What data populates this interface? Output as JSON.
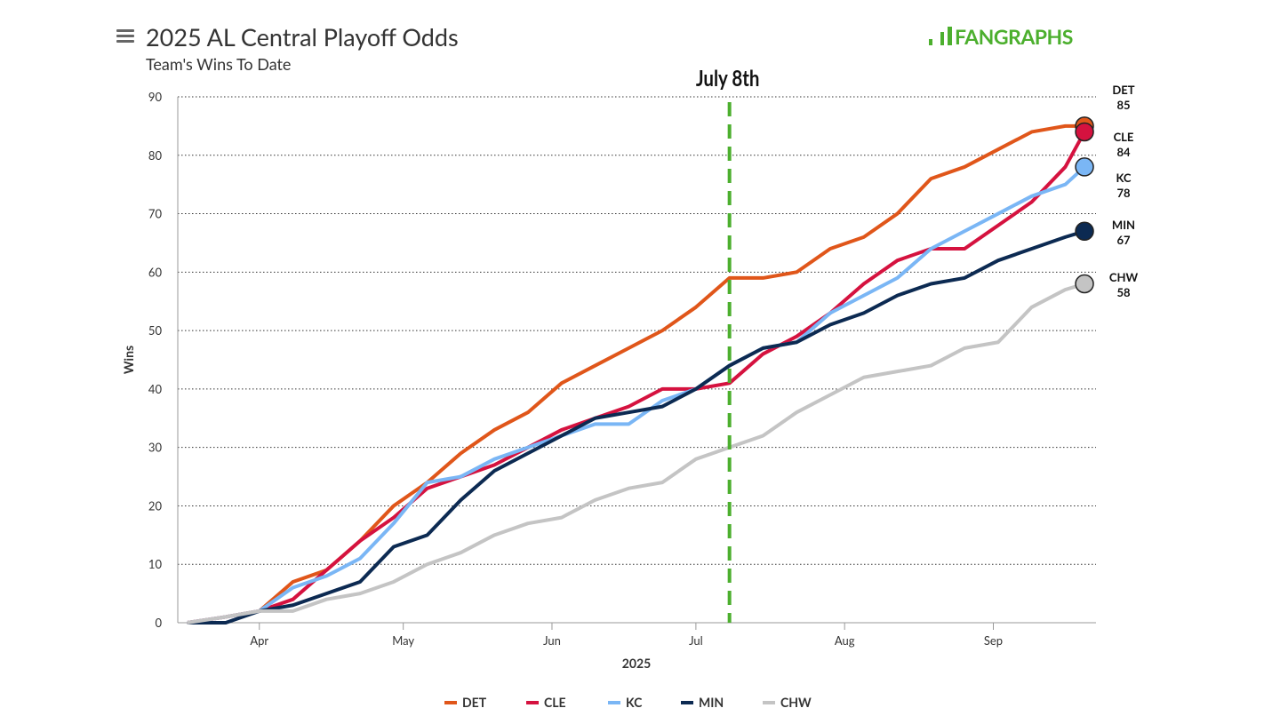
{
  "chart_data": {
    "type": "line",
    "title": "2025 AL Central Playoff Odds",
    "subtitle": "Team's Wins To Date",
    "logo": "FANGRAPHS",
    "xlabel": "2025",
    "ylabel": "Wins",
    "x": [
      76,
      84,
      91,
      98,
      105,
      112,
      119,
      126,
      133,
      140,
      147,
      154,
      161,
      168,
      175,
      182,
      189,
      196,
      203,
      210,
      217,
      224,
      231,
      238,
      245,
      252,
      259,
      263
    ],
    "series": [
      {
        "name": "DET",
        "color": "#e0561a",
        "values": [
          0,
          1,
          2,
          7,
          9,
          14,
          20,
          24,
          29,
          33,
          36,
          41,
          44,
          47,
          50,
          54,
          59,
          59,
          60,
          64,
          66,
          70,
          76,
          78,
          81,
          84,
          85,
          85
        ]
      },
      {
        "name": "CLE",
        "color": "#d5123f",
        "values": [
          0,
          1,
          2,
          4,
          9,
          14,
          18,
          23,
          25,
          27,
          30,
          33,
          35,
          37,
          40,
          40,
          41,
          46,
          49,
          53,
          58,
          62,
          64,
          64,
          68,
          72,
          78,
          84
        ]
      },
      {
        "name": "KC",
        "color": "#7ab6f5",
        "values": [
          0,
          1,
          2,
          6,
          8,
          11,
          17,
          24,
          25,
          28,
          30,
          32,
          34,
          34,
          38,
          40,
          44,
          47,
          48,
          53,
          56,
          59,
          64,
          67,
          70,
          73,
          75,
          78
        ]
      },
      {
        "name": "MIN",
        "color": "#0c2a52",
        "values": [
          0,
          0,
          2,
          3,
          5,
          7,
          13,
          15,
          21,
          26,
          29,
          32,
          35,
          36,
          37,
          40,
          44,
          47,
          48,
          51,
          53,
          56,
          58,
          59,
          62,
          64,
          66,
          67
        ]
      },
      {
        "name": "CHW",
        "color": "#c4c4c4",
        "values": [
          0,
          1,
          2,
          2,
          4,
          5,
          7,
          10,
          12,
          15,
          17,
          18,
          21,
          23,
          24,
          28,
          30,
          32,
          36,
          39,
          42,
          43,
          44,
          47,
          48,
          54,
          57,
          58
        ]
      }
    ],
    "annotation": {
      "x": 189,
      "label": "July 8th",
      "color": "#4caf2e"
    },
    "xlim": [
      74,
      265.4
    ],
    "xticks": [
      {
        "value": 91,
        "label": "Apr"
      },
      {
        "value": 121,
        "label": "May"
      },
      {
        "value": 152,
        "label": "Jun"
      },
      {
        "value": 182,
        "label": "Jul"
      },
      {
        "value": 213,
        "label": "Aug"
      },
      {
        "value": 244,
        "label": "Sep"
      }
    ],
    "ylim": [
      0,
      90
    ],
    "yticks": [
      0,
      10,
      20,
      30,
      40,
      50,
      60,
      70,
      80,
      90
    ],
    "grid": true,
    "legend": "bottom"
  }
}
